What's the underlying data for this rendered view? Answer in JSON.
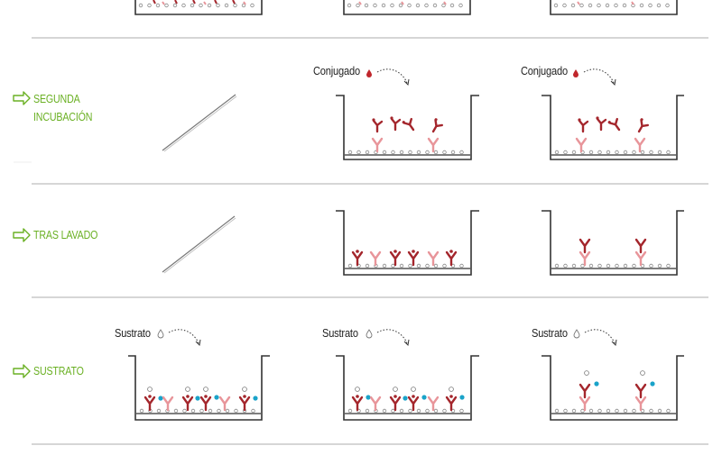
{
  "steps": [
    {
      "id": "segunda",
      "lines": [
        "SEGUNDA",
        "INCUBACIÓN"
      ]
    },
    {
      "id": "lavado",
      "lines": [
        "TRAS LAVADO"
      ]
    },
    {
      "id": "sustrato",
      "lines": [
        "SUSTRATO"
      ]
    }
  ],
  "reagents": {
    "conjugado": "Conjugado",
    "sustrato": "Sustrato"
  },
  "colors": {
    "green": "#6ab023",
    "antibody_dark": "#a4262c",
    "antibody_light": "#e8959a",
    "well": "#333333",
    "substrate_blue": "#1aa3c9",
    "divider": "#c8c8c8",
    "droplet": "#c0262c"
  }
}
